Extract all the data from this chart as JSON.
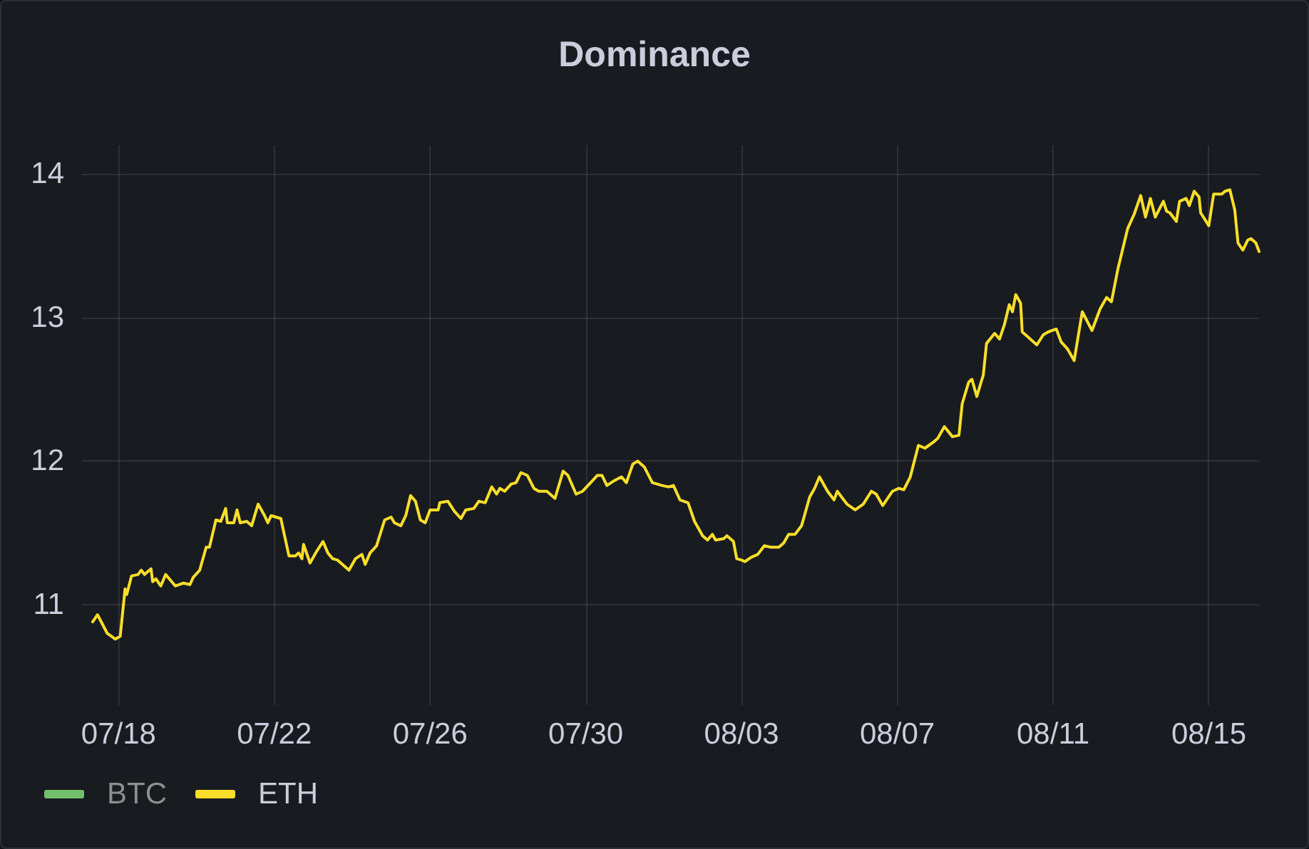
{
  "chart_data": {
    "type": "line",
    "title": "Dominance",
    "x": [
      "--07-17T08:00",
      "--07-17T11:00",
      "--07-17T17:00",
      "--07-17T22:00",
      "--07-18T01:00",
      "--07-18T04:00",
      "--07-18T05:00",
      "--07-18T08:00",
      "--07-18T12:00",
      "--07-18T14:00",
      "--07-18T16:00",
      "--07-18T20:00",
      "--07-18T21:00",
      "--07-18T23:00",
      "--07-19T02:00",
      "--07-19T05:00",
      "--07-19T11:00",
      "--07-19T16:00",
      "--07-19T20:00",
      "--07-19T22:00",
      "--07-20T02:00",
      "--07-20T06:00",
      "--07-20T08:00",
      "--07-20T12:00",
      "--07-20T15:00",
      "--07-20T18:00",
      "--07-20T19:00",
      "--07-20T23:00",
      "--07-21T01:00",
      "--07-21T03:00",
      "--07-21T07:00",
      "--07-21T10:00",
      "--07-21T14:00",
      "--07-21T18:00",
      "--07-21T20:00",
      "--07-21T22:00",
      "--07-22T04:00",
      "--07-22T09:00",
      "--07-22T13:00",
      "--07-22T15:00",
      "--07-22T17:00",
      "--07-22T18:00",
      "--07-22T22:00",
      "--07-23T02:00",
      "--07-23T06:00",
      "--07-23T09:00",
      "--07-23T12:00",
      "--07-23T15:00",
      "--07-23T22:00",
      "--07-24T02:00",
      "--07-24T06:00",
      "--07-24T08:00",
      "--07-24T11:00",
      "--07-24T15:00",
      "--07-24T20:00",
      "--07-25T00:00",
      "--07-25T02:00",
      "--07-25T06:00",
      "--07-25T09:00",
      "--07-25T12:00",
      "--07-25T15:00",
      "--07-25T18:00",
      "--07-25T21:00",
      "--07-26T00:00",
      "--07-26T05:00",
      "--07-26T06:00",
      "--07-26T11:00",
      "--07-26T15:00",
      "--07-26T19:00",
      "--07-26T22:00",
      "--07-27T03:00",
      "--07-27T06:00",
      "--07-27T10:00",
      "--07-27T14:00",
      "--07-27T17:00",
      "--07-27T19:00",
      "--07-27T22:00",
      "--07-28T02:00",
      "--07-28T05:00",
      "--07-28T08:00",
      "--07-28T12:00",
      "--07-28T16:00",
      "--07-28T19:00",
      "--07-29T00:00",
      "--07-29T05:00",
      "--07-29T10:00",
      "--07-29T13:00",
      "--07-29T18:00",
      "--07-29T22:00",
      "--07-30T03:00",
      "--07-30T07:00",
      "--07-30T10:00",
      "--07-30T13:00",
      "--07-30T17:00",
      "--07-30T22:00",
      "--07-31T01:00",
      "--07-31T05:00",
      "--07-31T08:00",
      "--07-31T12:00",
      "--07-31T17:00",
      "--07-31T23:00",
      "--08-01T03:00",
      "--08-01T06:00",
      "--08-01T10:00",
      "--08-01T15:00",
      "--08-01T19:00",
      "--08-02T00:00",
      "--08-02T03:00",
      "--08-02T06:00",
      "--08-02T08:00",
      "--08-02T13:00",
      "--08-02T15:00",
      "--08-02T19:00",
      "--08-02T21:00",
      "--08-03T00:00",
      "--08-03T02:00",
      "--08-03T06:00",
      "--08-03T10:00",
      "--08-03T14:00",
      "--08-03T18:00",
      "--08-03T23:00",
      "--08-04T02:00",
      "--08-04T05:00",
      "--08-04T09:00",
      "--08-04T13:00",
      "--08-04T18:00",
      "--08-04T21:00",
      "--08-05T00:00",
      "--08-05T05:00",
      "--08-05T09:00",
      "--08-05T11:00",
      "--08-05T17:00",
      "--08-05T22:00",
      "--08-06T03:00",
      "--08-06T08:00",
      "--08-06T11:00",
      "--08-06T15:00",
      "--08-06T21:00",
      "--08-07T01:00",
      "--08-07T04:00",
      "--08-07T08:00",
      "--08-07T13:00",
      "--08-07T17:00",
      "--08-07T22:00",
      "--08-08T01:00",
      "--08-08T05:00",
      "--08-08T10:00",
      "--08-08T14:00",
      "--08-08T16:00",
      "--08-08T20:00",
      "--08-08T22:00",
      "--08-09T01:00",
      "--08-09T05:00",
      "--08-09T07:00",
      "--08-09T12:00",
      "--08-09T15:00",
      "--08-09T18:00",
      "--08-09T21:00",
      "--08-09T23:00",
      "--08-10T01:00",
      "--08-10T04:00",
      "--08-10T05:00",
      "--08-10T08:00",
      "--08-10T14:00",
      "--08-10T18:00",
      "--08-10T21:00",
      "--08-11T02:00",
      "--08-11T05:00",
      "--08-11T09:00",
      "--08-11T13:00",
      "--08-11T18:00",
      "--08-12T00:00",
      "--08-12T05:00",
      "--08-12T09:00",
      "--08-12T12:00",
      "--08-12T16:00",
      "--08-12T22:00",
      "--08-13T02:00",
      "--08-13T06:00",
      "--08-13T09:00",
      "--08-13T12:00",
      "--08-13T15:00",
      "--08-13T20:00",
      "--08-13T22:00",
      "--08-14T00:00",
      "--08-14T04:00",
      "--08-14T06:00",
      "--08-14T10:00",
      "--08-14T12:00",
      "--08-14T15:00",
      "--08-14T18:00",
      "--08-14T19:00",
      "--08-15T00:00",
      "--08-15T03:00",
      "--08-15T08:00",
      "--08-15T10:00",
      "--08-15T13:00",
      "--08-15T16:00",
      "--08-15T18:00",
      "--08-15T21:00",
      "--08-16T00:00",
      "--08-16T02:00",
      "--08-16T05:00",
      "--08-16T07:00"
    ],
    "series": [
      {
        "name": "BTC",
        "color": "#73bf69",
        "values": [
          null,
          null,
          null,
          null,
          null,
          null,
          null,
          null,
          null,
          null,
          null,
          null,
          null,
          null,
          null,
          null,
          null,
          null,
          null,
          null,
          null,
          null,
          null,
          null,
          null,
          null,
          null,
          null,
          null,
          null,
          null,
          null,
          null,
          null,
          null,
          null,
          null,
          null,
          null,
          null,
          null,
          null,
          null,
          null,
          null,
          null,
          null,
          null,
          null,
          null,
          null,
          null,
          null,
          null,
          null,
          null,
          null,
          null,
          null,
          null,
          null,
          null,
          null,
          null,
          null,
          null,
          null,
          null,
          null,
          null,
          null,
          null,
          null,
          null,
          null,
          null,
          null,
          null,
          null,
          null,
          null,
          null,
          null,
          null,
          null,
          null,
          null,
          null,
          null,
          null,
          null,
          null,
          null,
          null,
          null,
          null,
          null,
          null,
          null,
          null,
          null,
          null,
          null,
          null,
          null,
          null,
          null,
          null,
          null,
          null,
          null,
          null,
          null,
          null,
          null,
          null,
          null,
          null,
          null,
          null,
          null,
          null,
          null,
          null,
          null,
          null,
          null,
          null,
          null,
          null,
          null,
          null,
          null,
          null,
          null,
          null,
          null,
          null,
          null,
          null,
          null,
          null,
          null,
          null,
          null,
          null,
          null,
          null,
          null,
          null,
          null,
          null,
          null,
          null,
          null,
          null,
          null,
          null,
          null,
          null,
          null,
          null,
          null,
          null,
          null,
          null,
          null,
          null,
          null,
          null,
          null,
          null,
          null,
          null,
          null,
          null,
          null,
          null,
          null,
          null,
          null,
          null,
          null,
          null,
          null,
          null,
          null,
          null,
          null,
          null,
          null,
          null,
          null,
          null,
          null,
          null,
          null,
          null,
          null,
          null,
          null,
          null,
          null,
          null
        ]
      },
      {
        "name": "ETH",
        "color": "#fade2a",
        "values": [
          10.88,
          10.93,
          10.8,
          10.76,
          10.78,
          11.11,
          11.07,
          11.2,
          11.21,
          11.24,
          11.21,
          11.25,
          11.16,
          11.18,
          11.13,
          11.21,
          11.13,
          11.15,
          11.14,
          11.19,
          11.24,
          11.4,
          11.4,
          11.59,
          11.58,
          11.67,
          11.57,
          11.57,
          11.66,
          11.57,
          11.58,
          11.55,
          11.7,
          11.62,
          11.57,
          11.62,
          11.6,
          11.34,
          11.34,
          11.36,
          11.32,
          11.42,
          11.29,
          11.37,
          11.44,
          11.36,
          11.32,
          11.31,
          11.24,
          11.32,
          11.35,
          11.28,
          11.36,
          11.41,
          11.59,
          11.61,
          11.57,
          11.55,
          11.62,
          11.76,
          11.72,
          11.59,
          11.57,
          11.66,
          11.66,
          11.71,
          11.72,
          11.65,
          11.6,
          11.66,
          11.67,
          11.72,
          11.71,
          11.82,
          11.77,
          11.81,
          11.79,
          11.84,
          11.85,
          11.92,
          11.9,
          11.81,
          11.79,
          11.79,
          11.74,
          11.93,
          11.9,
          11.77,
          11.79,
          11.85,
          11.9,
          11.9,
          11.83,
          11.86,
          11.89,
          11.85,
          11.98,
          12.0,
          11.96,
          11.85,
          11.83,
          11.82,
          11.83,
          11.73,
          11.71,
          11.58,
          11.48,
          11.45,
          11.49,
          11.45,
          11.46,
          11.48,
          11.44,
          11.32,
          11.31,
          11.3,
          11.33,
          11.35,
          11.41,
          11.4,
          11.4,
          11.43,
          11.49,
          11.49,
          11.55,
          11.75,
          11.81,
          11.89,
          11.79,
          11.73,
          11.79,
          11.7,
          11.66,
          11.7,
          11.79,
          11.77,
          11.69,
          11.79,
          11.81,
          11.8,
          11.89,
          12.11,
          12.09,
          12.13,
          12.16,
          12.24,
          12.17,
          12.18,
          12.4,
          12.55,
          12.57,
          12.45,
          12.6,
          12.82,
          12.89,
          12.85,
          12.95,
          13.09,
          13.04,
          13.16,
          13.1,
          12.9,
          12.87,
          12.81,
          12.88,
          12.9,
          12.92,
          12.83,
          12.78,
          12.7,
          13.04,
          12.91,
          13.06,
          13.14,
          13.11,
          13.34,
          13.62,
          13.72,
          13.85,
          13.7,
          13.83,
          13.7,
          13.81,
          13.74,
          13.73,
          13.67,
          13.81,
          13.83,
          13.78,
          13.88,
          13.84,
          13.73,
          13.64,
          13.86,
          13.86,
          13.88,
          13.89,
          13.75,
          13.52,
          13.47,
          13.54,
          13.55,
          13.52,
          13.46
        ]
      }
    ],
    "xlim": [
      "--07-17T01:00",
      "--08-16T07:00"
    ],
    "xticks": [
      {
        "value": "--07-18",
        "label": "07/18"
      },
      {
        "value": "--07-22",
        "label": "07/22"
      },
      {
        "value": "--07-26",
        "label": "07/26"
      },
      {
        "value": "--07-30",
        "label": "07/30"
      },
      {
        "value": "--08-03",
        "label": "08/03"
      },
      {
        "value": "--08-07",
        "label": "08/07"
      },
      {
        "value": "--08-11",
        "label": "08/11"
      },
      {
        "value": "--08-15",
        "label": "08/15"
      }
    ],
    "ylim": [
      10.3,
      14.2
    ],
    "yticks": [
      11,
      12,
      13,
      14
    ],
    "grid": true,
    "legend": "bottom left"
  }
}
